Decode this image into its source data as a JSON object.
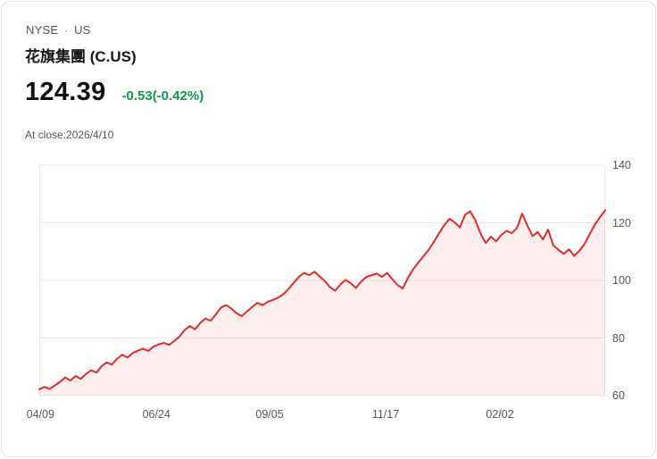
{
  "card": {
    "exchange": "NYSE",
    "separator": "·",
    "region": "US",
    "title": "花旗集團 (C.US)",
    "price": "124.39",
    "change": "-0.53(-0.42%)",
    "as_of": "At close:2026/4/10",
    "colors": {
      "line": "#e02b2b",
      "fill": "#e02b2b",
      "fill_opacity": 0.08,
      "change_text": "#119a49",
      "grid": "#e9e9eb",
      "tick_label": "#55555e"
    }
  },
  "chart_data": {
    "type": "area",
    "title": "花旗集團 (C.US) 1-year price",
    "xlabel": "",
    "ylabel": "",
    "x_ticks": [
      "04/09",
      "06/24",
      "09/05",
      "11/17",
      "02/02"
    ],
    "x_tick_positions": [
      0.002,
      0.207,
      0.407,
      0.612,
      0.814
    ],
    "y_ticks": [
      60,
      80,
      100,
      120,
      140
    ],
    "ylim": [
      60,
      140
    ],
    "grid": true,
    "legend": "none",
    "values": [
      62.2,
      63.0,
      62.3,
      63.5,
      64.8,
      66.3,
      65.2,
      66.8,
      65.8,
      67.5,
      68.8,
      68.0,
      70.2,
      71.5,
      70.8,
      72.8,
      74.2,
      73.2,
      74.8,
      75.6,
      76.3,
      75.5,
      77.0,
      77.8,
      78.3,
      77.6,
      78.9,
      80.5,
      82.8,
      84.2,
      83.0,
      85.2,
      86.8,
      86.0,
      88.2,
      90.6,
      91.4,
      90.2,
      88.6,
      87.6,
      89.2,
      90.8,
      92.2,
      91.4,
      92.6,
      93.2,
      94.0,
      95.2,
      97.0,
      99.2,
      101.2,
      102.6,
      101.8,
      103.0,
      101.4,
      99.8,
      97.6,
      96.4,
      98.6,
      100.2,
      99.0,
      97.4,
      99.6,
      101.2,
      101.8,
      102.4,
      101.2,
      102.6,
      100.4,
      98.4,
      97.2,
      100.8,
      103.8,
      106.2,
      108.4,
      110.6,
      113.4,
      116.4,
      119.2,
      121.4,
      120.2,
      118.4,
      122.8,
      124.0,
      120.8,
      116.2,
      113.0,
      115.2,
      113.6,
      115.8,
      117.2,
      116.4,
      118.2,
      123.2,
      119.0,
      115.4,
      116.8,
      114.2,
      117.6,
      112.2,
      110.6,
      109.2,
      110.8,
      108.6,
      110.2,
      112.6,
      116.0,
      119.4,
      122.0,
      124.39
    ]
  }
}
